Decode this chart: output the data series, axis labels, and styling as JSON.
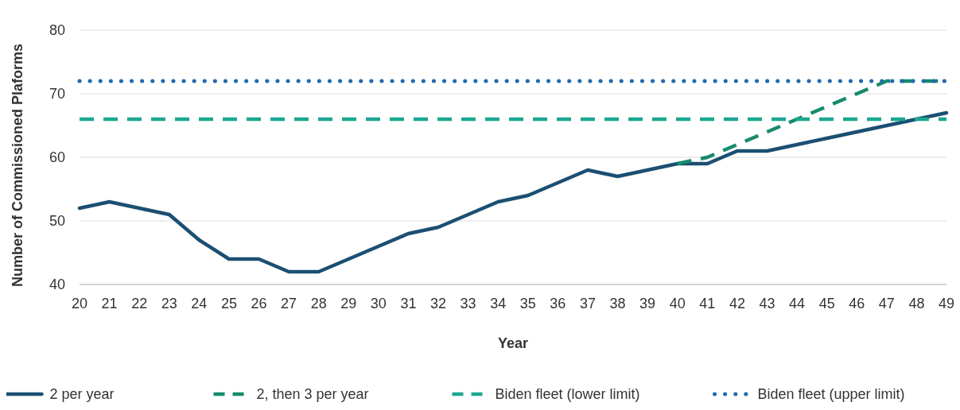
{
  "chart_data": {
    "type": "line",
    "xlabel": "Year",
    "ylabel": "Number of Commissioned Plaforms",
    "categories": [
      "20",
      "21",
      "22",
      "23",
      "24",
      "25",
      "26",
      "27",
      "28",
      "29",
      "30",
      "31",
      "32",
      "33",
      "34",
      "35",
      "36",
      "37",
      "38",
      "39",
      "40",
      "41",
      "42",
      "43",
      "44",
      "45",
      "46",
      "47",
      "48",
      "49"
    ],
    "series": [
      {
        "name": "2 per year",
        "color": "#1b4f72",
        "line_style": "solid",
        "values": [
          52,
          53,
          52,
          51,
          47,
          44,
          44,
          42,
          42,
          44,
          46,
          48,
          49,
          51,
          53,
          54,
          56,
          58,
          57,
          58,
          59,
          59,
          61,
          61,
          62,
          63,
          64,
          65,
          66,
          67
        ]
      },
      {
        "name": "2, then 3 per year",
        "color": "#178a6c",
        "line_style": "dashed",
        "values": [
          null,
          null,
          null,
          null,
          null,
          null,
          null,
          null,
          null,
          null,
          null,
          null,
          null,
          null,
          null,
          null,
          null,
          null,
          null,
          null,
          59,
          60,
          62,
          64,
          66,
          68,
          70,
          72,
          72,
          72
        ]
      },
      {
        "name": "Biden fleet (lower limit)",
        "color": "#1aa88f",
        "line_style": "dashed",
        "values": [
          66,
          66,
          66,
          66,
          66,
          66,
          66,
          66,
          66,
          66,
          66,
          66,
          66,
          66,
          66,
          66,
          66,
          66,
          66,
          66,
          66,
          66,
          66,
          66,
          66,
          66,
          66,
          66,
          66,
          66
        ]
      },
      {
        "name": "Biden fleet (upper limit)",
        "color": "#1f6bb0",
        "line_style": "dotted",
        "values": [
          72,
          72,
          72,
          72,
          72,
          72,
          72,
          72,
          72,
          72,
          72,
          72,
          72,
          72,
          72,
          72,
          72,
          72,
          72,
          72,
          72,
          72,
          72,
          72,
          72,
          72,
          72,
          72,
          72,
          72
        ]
      }
    ],
    "ylim": [
      40,
      80
    ],
    "yticks": [
      40,
      50,
      60,
      70,
      80
    ],
    "grid": "y",
    "legend": "bottom"
  }
}
